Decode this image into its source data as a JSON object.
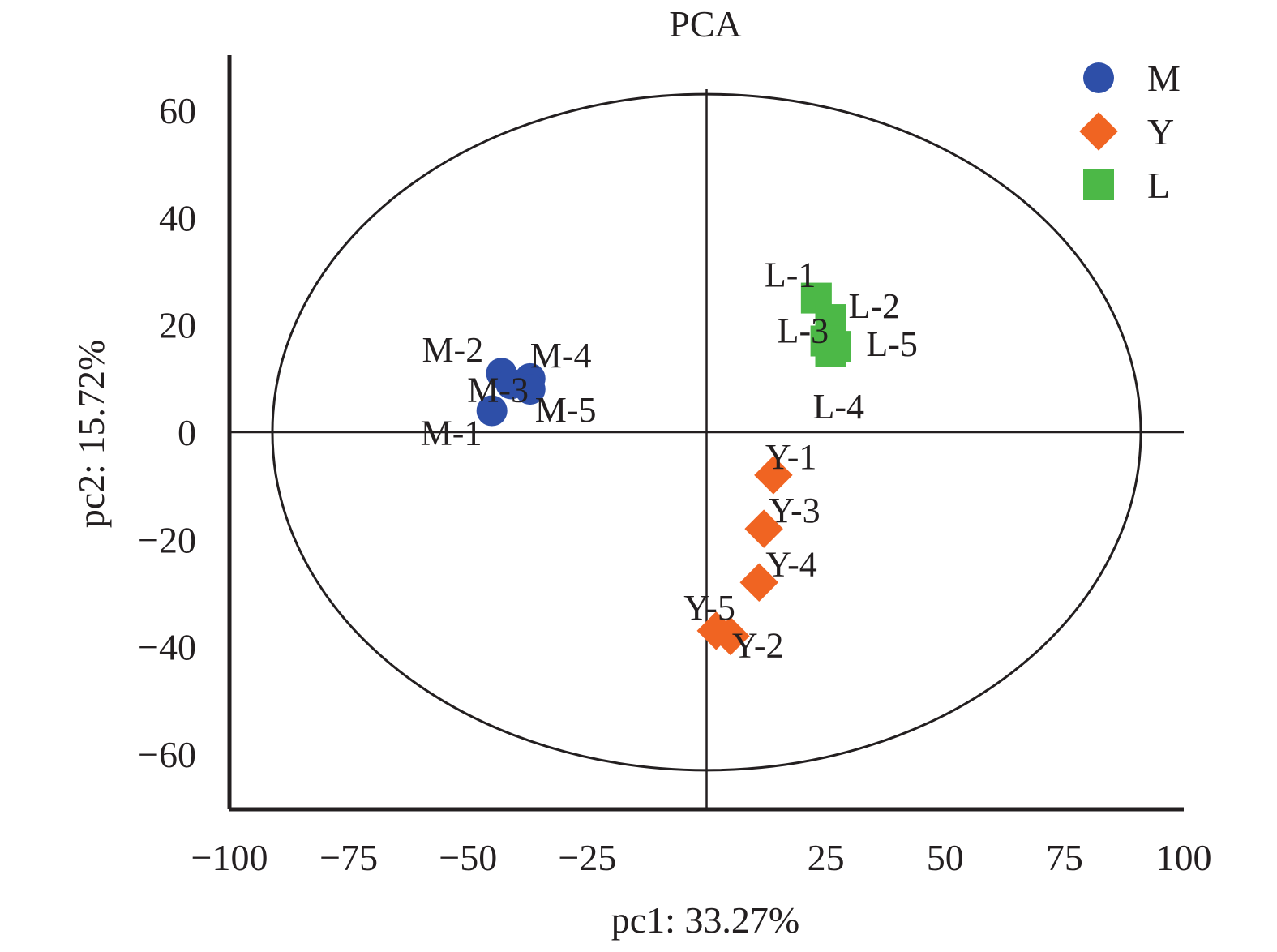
{
  "chart_data": {
    "type": "scatter",
    "title": "PCA",
    "xlabel": "pc1: 33.27%",
    "ylabel": "pc2: 15.72%",
    "xlim": [
      -100,
      100
    ],
    "ylim": [
      -70,
      70
    ],
    "xticks": [
      -100,
      -75,
      -50,
      -25,
      0,
      25,
      50,
      75,
      100
    ],
    "xtick_labels": [
      "−100",
      "−75",
      "−50",
      "−25",
      "",
      "25",
      "50",
      "75",
      "100"
    ],
    "yticks": [
      60,
      40,
      20,
      0,
      -20,
      -40,
      -60
    ],
    "ytick_labels": [
      "60",
      "40",
      "20",
      "0",
      "−20",
      "−40",
      "−60"
    ],
    "grid": false,
    "legend_position": "top-right",
    "ellipse": {
      "center": [
        0,
        0
      ],
      "radius_x": 91,
      "radius_y": 63
    },
    "series": [
      {
        "name": "M",
        "marker": "circle",
        "color": "#2e4fa8",
        "points": [
          {
            "label": "M-1",
            "x": -45,
            "y": 4
          },
          {
            "label": "M-2",
            "x": -43,
            "y": 11
          },
          {
            "label": "M-3",
            "x": -41,
            "y": 9
          },
          {
            "label": "M-4",
            "x": -37,
            "y": 10
          },
          {
            "label": "M-5",
            "x": -37,
            "y": 8
          }
        ]
      },
      {
        "name": "Y",
        "marker": "diamond",
        "color": "#f06422",
        "points": [
          {
            "label": "Y-1",
            "x": 14,
            "y": -8
          },
          {
            "label": "Y-2",
            "x": 5,
            "y": -38
          },
          {
            "label": "Y-3",
            "x": 12,
            "y": -18
          },
          {
            "label": "Y-4",
            "x": 11,
            "y": -28
          },
          {
            "label": "Y-5",
            "x": 2,
            "y": -37
          }
        ]
      },
      {
        "name": "L",
        "marker": "square",
        "color": "#4cb847",
        "points": [
          {
            "label": "L-1",
            "x": 23,
            "y": 25
          },
          {
            "label": "L-2",
            "x": 26,
            "y": 21
          },
          {
            "label": "L-3",
            "x": 25,
            "y": 17
          },
          {
            "label": "L-4",
            "x": 26,
            "y": 15
          },
          {
            "label": "L-5",
            "x": 27,
            "y": 16
          }
        ]
      }
    ]
  }
}
